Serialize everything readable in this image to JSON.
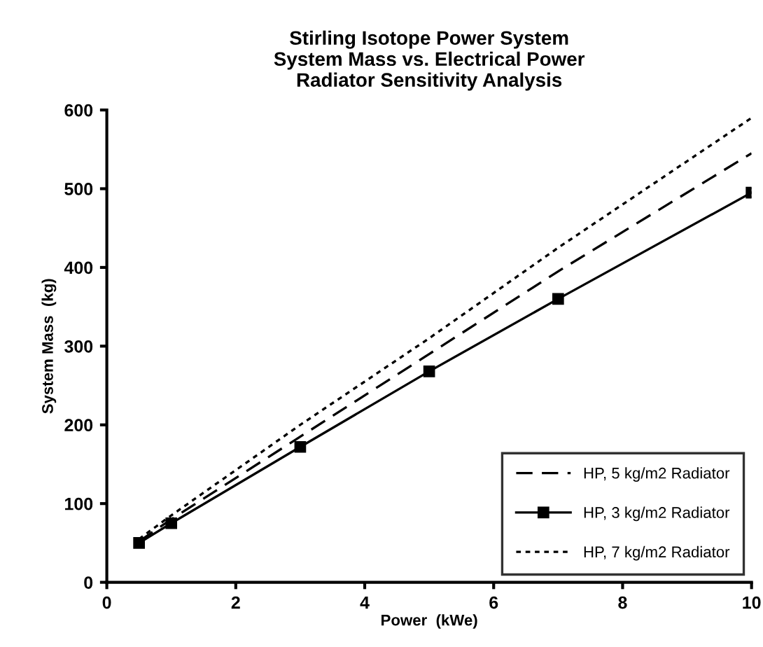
{
  "chart_data": {
    "type": "line",
    "title": "Stirling Isotope Power System\nSystem Mass vs. Electrical Power\nRadiator Sensitivity Analysis",
    "xlabel": "Power  (kWe)",
    "ylabel": "System Mass  (kg)",
    "xlim": [
      0,
      10
    ],
    "ylim": [
      0,
      600
    ],
    "xticks": [
      0,
      2,
      4,
      6,
      8,
      10
    ],
    "yticks": [
      0,
      100,
      200,
      300,
      400,
      500,
      600
    ],
    "grid": false,
    "legend": "bottom right",
    "series": [
      {
        "name": "HP, 5 kg/m2 Radiator",
        "color": "#000000",
        "line_style": "dashed",
        "marker": "none",
        "x": [
          0.5,
          1,
          3,
          5,
          7,
          10
        ],
        "values": [
          52,
          80,
          185,
          290,
          395,
          545
        ]
      },
      {
        "name": "HP, 3 kg/m2 Radiator",
        "color": "#000000",
        "line_style": "solid",
        "marker": "square",
        "x": [
          0.5,
          1,
          3,
          5,
          7,
          10
        ],
        "values": [
          50,
          75,
          172,
          268,
          360,
          495
        ]
      },
      {
        "name": "HP, 7 kg/m2 Radiator",
        "color": "#000000",
        "line_style": "dotted",
        "marker": "none",
        "x": [
          0.5,
          1,
          3,
          5,
          7,
          10
        ],
        "values": [
          55,
          85,
          200,
          310,
          425,
          590
        ]
      }
    ]
  }
}
